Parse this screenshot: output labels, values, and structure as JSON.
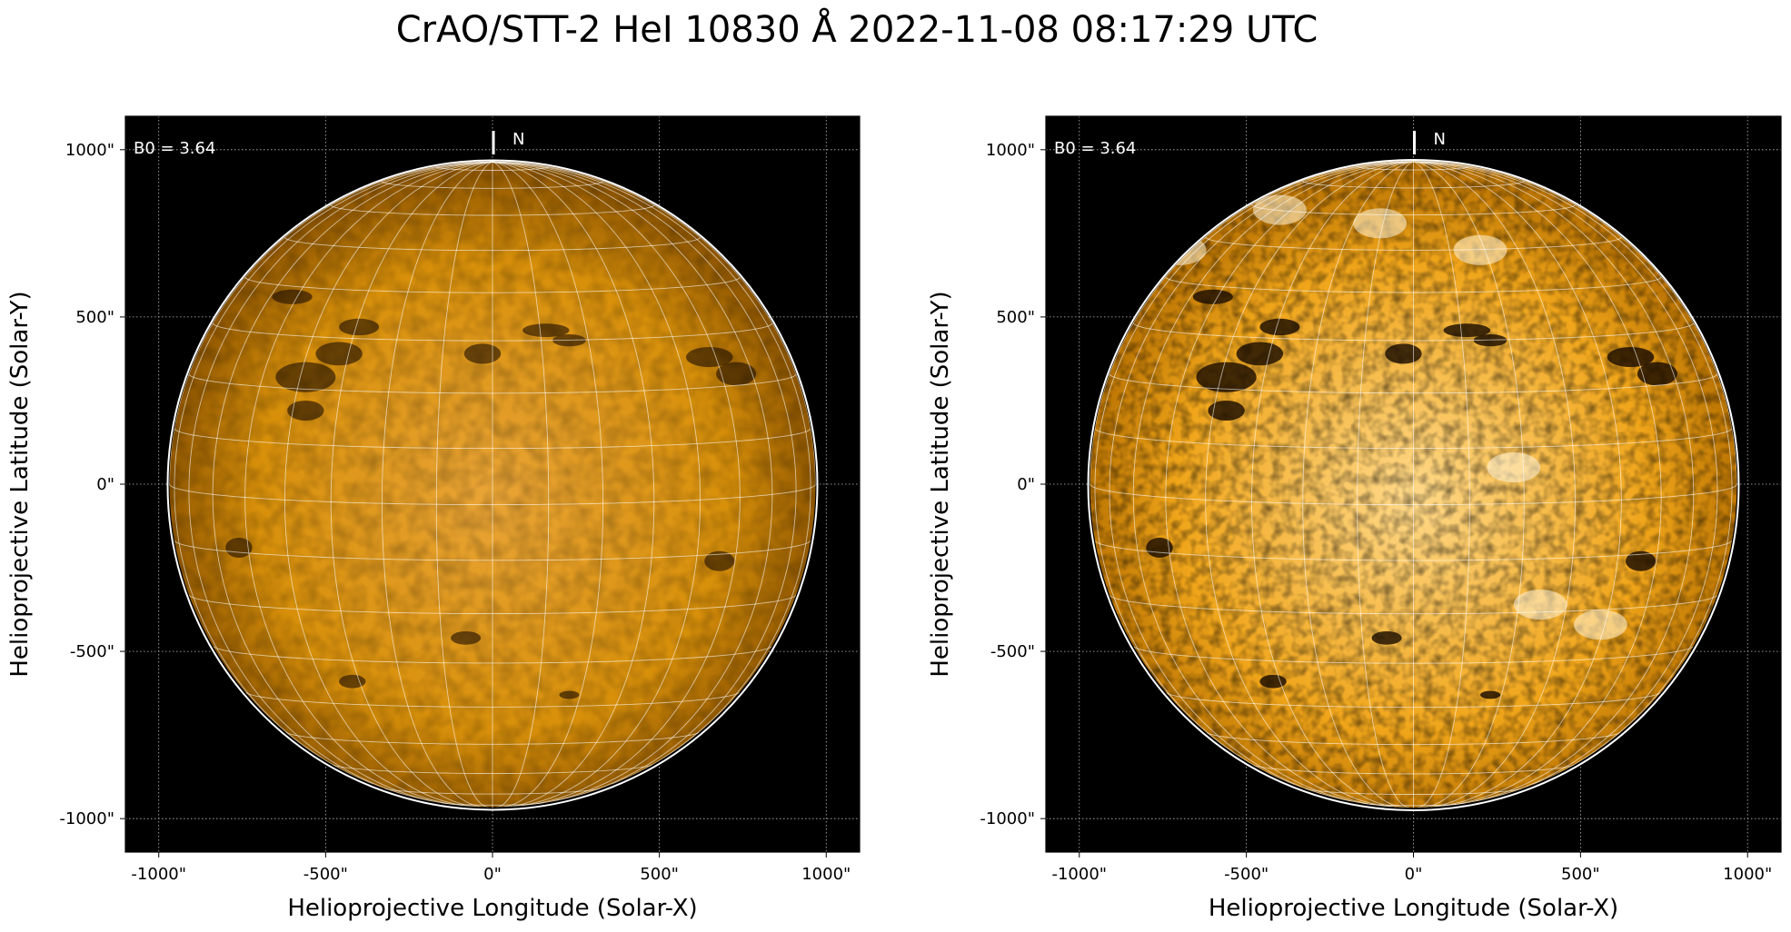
{
  "figure": {
    "title": "CrAO/STT-2 HeI 10830 Å 2022-11-08 08:17:29 UTC"
  },
  "panels": [
    {
      "id": "left",
      "xlabel": "Helioprojective Longitude (Solar-X)",
      "ylabel": "Helioprojective Latitude (Solar-Y)",
      "b0_label": "B0 = 3.64",
      "north_label": "N",
      "x_ticks": [
        -1000,
        -500,
        0,
        500,
        1000
      ],
      "y_ticks": [
        1000,
        500,
        0,
        -500,
        -1000
      ],
      "x_tick_labels": [
        "-1000\"",
        "-500\"",
        "0\"",
        "500\"",
        "1000\""
      ],
      "y_tick_labels": [
        "1000\"",
        "500\"",
        "0\"",
        "-500\"",
        "-1000\""
      ],
      "style": "original",
      "disk_fill": "#d8900a",
      "disk_edge": "#8a5200"
    },
    {
      "id": "right",
      "xlabel": "Helioprojective Longitude (Solar-X)",
      "ylabel": "Helioprojective Latitude (Solar-Y)",
      "b0_label": "B0 = 3.64",
      "north_label": "N",
      "x_ticks": [
        -1000,
        -500,
        0,
        500,
        1000
      ],
      "y_ticks": [
        1000,
        500,
        0,
        -500,
        -1000
      ],
      "x_tick_labels": [
        "-1000\"",
        "-500\"",
        "0\"",
        "500\"",
        "1000\""
      ],
      "y_tick_labels": [
        "1000\"",
        "500\"",
        "0\"",
        "-500\"",
        "-1000\""
      ],
      "style": "enhanced",
      "disk_fill": "#f0a51a",
      "disk_edge": "#b56f00"
    }
  ],
  "axes": {
    "xlim": [
      -1100,
      1100
    ],
    "ylim": [
      -1100,
      1100
    ],
    "solar_radius_arcsec": 968,
    "grid": true
  },
  "colors": {
    "background": "#000000",
    "limb": "#ffffff",
    "grid_lines": "#ffffff"
  }
}
